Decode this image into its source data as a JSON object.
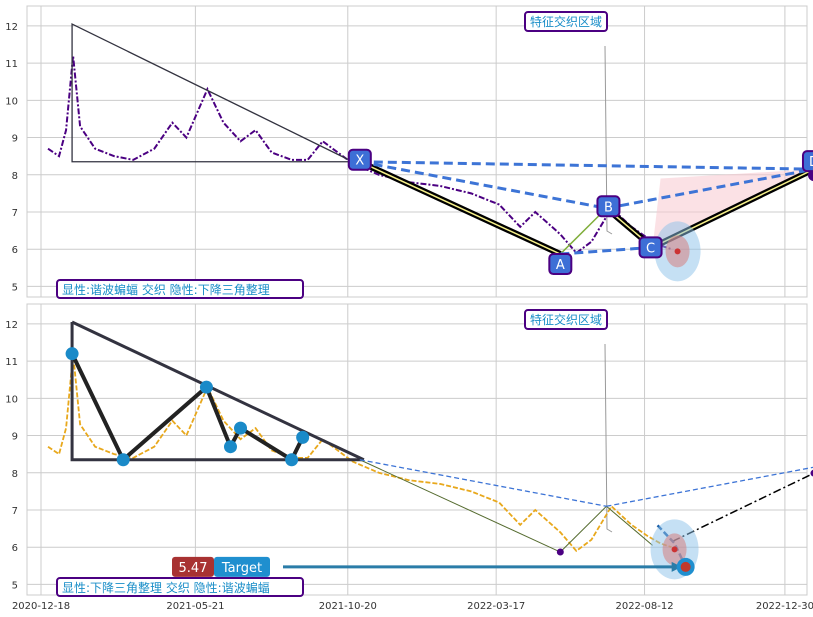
{
  "chart_data": [
    {
      "type": "line",
      "panel": "top",
      "ylim": [
        4.85,
        12.4
      ],
      "yticks": [
        5,
        6,
        7,
        8,
        9,
        10,
        11,
        12
      ],
      "grid": true,
      "series_color": "#4b0082",
      "price": [
        [
          "2020-12-25",
          8.7
        ],
        [
          "2021-01-05",
          8.5
        ],
        [
          "2021-01-12",
          9.2
        ],
        [
          "2021-01-19",
          11.2
        ],
        [
          "2021-01-26",
          9.3
        ],
        [
          "2021-02-10",
          8.7
        ],
        [
          "2021-03-01",
          8.5
        ],
        [
          "2021-03-20",
          8.4
        ],
        [
          "2021-04-10",
          8.7
        ],
        [
          "2021-04-28",
          9.4
        ],
        [
          "2021-05-12",
          9.0
        ],
        [
          "2021-06-02",
          10.3
        ],
        [
          "2021-06-18",
          9.4
        ],
        [
          "2021-07-05",
          8.9
        ],
        [
          "2021-07-20",
          9.2
        ],
        [
          "2021-08-05",
          8.6
        ],
        [
          "2021-08-25",
          8.4
        ],
        [
          "2021-09-10",
          8.4
        ],
        [
          "2021-09-25",
          8.9
        ],
        [
          "2021-10-10",
          8.6
        ],
        [
          "2021-10-25",
          8.3
        ],
        [
          "2021-11-20",
          8.0
        ],
        [
          "2021-12-20",
          7.8
        ],
        [
          "2022-01-20",
          7.7
        ],
        [
          "2022-02-20",
          7.5
        ],
        [
          "2022-03-20",
          7.2
        ],
        [
          "2022-04-10",
          6.6
        ],
        [
          "2022-04-25",
          7.0
        ],
        [
          "2022-05-20",
          6.4
        ],
        [
          "2022-06-05",
          5.9
        ],
        [
          "2022-06-20",
          6.2
        ],
        [
          "2022-07-10",
          7.1
        ],
        [
          "2022-07-30",
          6.6
        ],
        [
          "2022-08-15",
          6.3
        ],
        [
          "2022-08-28",
          6.1
        ],
        [
          "2022-09-08",
          6.0
        ]
      ],
      "pattern_points": [
        {
          "label": "X",
          "x": "2021-11-01",
          "y": 8.35
        },
        {
          "label": "A",
          "x": "2022-05-20",
          "y": 5.87
        },
        {
          "label": "B",
          "x": "2022-07-05",
          "y": 7.1
        },
        {
          "label": "C",
          "x": "2022-08-20",
          "y": 6.05
        },
        {
          "label": "D",
          "x": "2023-01-28",
          "y": 8.15
        }
      ],
      "triangle": [
        [
          "2021-01-18",
          12.05
        ],
        [
          "2021-10-25",
          8.35
        ],
        [
          "2021-01-18",
          8.35
        ]
      ],
      "annotation": "特征交织区域",
      "caption": "显性:谐波蝙蝠 交织 隐性:下降三角整理"
    },
    {
      "type": "line",
      "panel": "bottom",
      "ylim": [
        4.85,
        12.4
      ],
      "yticks": [
        5,
        6,
        7,
        8,
        9,
        10,
        11,
        12
      ],
      "grid": true,
      "series_color": "#e8a81c",
      "pivot_points": [
        [
          "2021-01-18",
          11.2
        ],
        [
          "2021-03-10",
          8.35
        ],
        [
          "2021-06-01",
          10.3
        ],
        [
          "2021-06-25",
          8.7
        ],
        [
          "2021-07-05",
          9.2
        ],
        [
          "2021-08-25",
          8.35
        ],
        [
          "2021-09-05",
          8.95
        ]
      ],
      "target": {
        "value": "5.47",
        "label": "Target",
        "x": "2022-09-22",
        "y": 5.47
      },
      "annotation": "特征交织区域",
      "caption": "显性:下降三角整理 交织 隐性:谐波蝙蝠"
    }
  ],
  "x_axis": {
    "range": [
      "2020-12-18",
      "2023-02-08"
    ],
    "ticks": [
      "2020-12-18",
      "2021-05-21",
      "2021-10-20",
      "2022-03-17",
      "2022-08-12",
      "2022-12-30"
    ]
  },
  "colors": {
    "grid": "#cccccc",
    "triangle": "#333340",
    "harmonic_dash": "#3d74d6",
    "badge_fill": "#3d6fd6",
    "badge_border": "#4b0082",
    "annot_text": "#1a8ec8",
    "target_value_bg": "#a83232",
    "target_label_bg": "#1f8fcf",
    "pivot_dot": "#1a8ac8"
  }
}
